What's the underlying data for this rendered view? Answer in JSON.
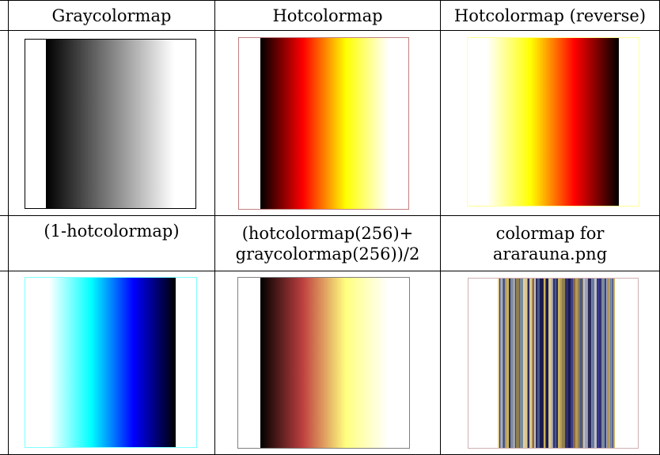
{
  "headers": {
    "gray": "Graycolormap",
    "hot": "Hotcolormap",
    "hot_reverse": "Hotcolormap (reverse)",
    "one_minus_hot_line": "(1-hotcolormap)",
    "average_line1": "(hotcolormap(256)+",
    "average_line2": "graycolormap(256))/2",
    "ararauna_line1": "colormap for",
    "ararauna_line2": "ararauna.png"
  },
  "panels": {
    "gray": {
      "border": "#000000",
      "gradient": [
        "#000000",
        "#7f7f7f",
        "#ffffff"
      ]
    },
    "hot": {
      "border": "#c08080",
      "gradient": [
        "#000000",
        "#ff0000",
        "#ffff00",
        "#ffffff"
      ]
    },
    "hot_reverse": {
      "border": "#ffff99",
      "gradient": [
        "#ffffff",
        "#ffff00",
        "#ff0000",
        "#000000"
      ]
    },
    "one_minus_hot": {
      "border": "#80ffff",
      "gradient": [
        "#ffffff",
        "#00ffff",
        "#0000ff",
        "#000000"
      ]
    },
    "average": {
      "border": "#808080",
      "gradient": [
        "#000000",
        "#bf4040",
        "#ffff80",
        "#ffffff"
      ]
    },
    "ararauna": {
      "border": "#d0b0b0",
      "stripe_colors": [
        "#3b3b8f",
        "#c8b060",
        "#7a8a9a",
        "#2a2a5a",
        "#d8c890",
        "#8a6a3a",
        "#4a5a8a",
        "#a0a0b0",
        "#e0d0a0",
        "#1a1a4a",
        "#6a7aa0",
        "#b89858",
        "#303070",
        "#c0c0c8",
        "#908050"
      ]
    }
  }
}
